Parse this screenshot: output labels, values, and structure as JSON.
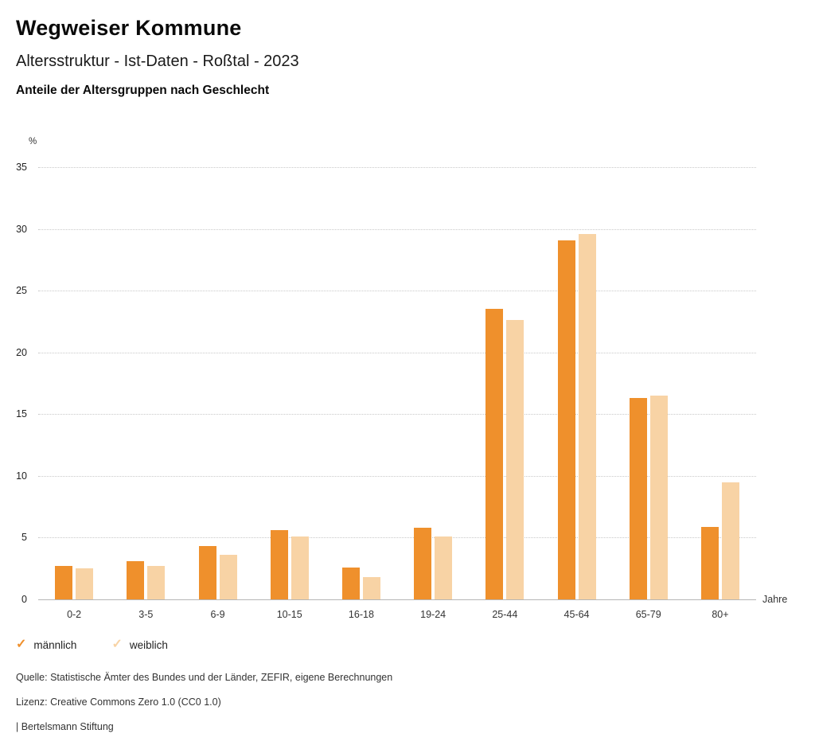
{
  "header": {
    "title": "Wegweiser Kommune",
    "subtitle": "Altersstruktur - Ist-Daten - Roßtal - 2023"
  },
  "chart_data": {
    "type": "bar",
    "title": "Anteile der Altersgruppen nach Geschlecht",
    "categories": [
      "0-2",
      "3-5",
      "6-9",
      "10-15",
      "16-18",
      "19-24",
      "25-44",
      "45-64",
      "65-79",
      "80+"
    ],
    "series": [
      {
        "name": "männlich",
        "color": "#EF902C",
        "values": [
          2.7,
          3.1,
          4.3,
          5.6,
          2.6,
          5.8,
          23.5,
          29.1,
          16.3,
          5.9
        ]
      },
      {
        "name": "weiblich",
        "color": "#F8D3A5",
        "values": [
          2.5,
          2.7,
          3.6,
          5.1,
          1.8,
          5.1,
          22.6,
          29.6,
          16.5,
          9.5
        ]
      }
    ],
    "xlabel": "Jahre",
    "ylabel": "%",
    "ylim": [
      0,
      35
    ],
    "yticks": [
      0,
      5,
      10,
      15,
      20,
      25,
      30,
      35
    ],
    "grid": true,
    "legend_position": "bottom"
  },
  "footer": {
    "source": "Quelle: Statistische Ämter des Bundes und der Länder, ZEFIR, eigene Berechnungen",
    "license": "Lizenz: Creative Commons Zero 1.0 (CC0 1.0)",
    "brand": "| Bertelsmann Stiftung"
  }
}
